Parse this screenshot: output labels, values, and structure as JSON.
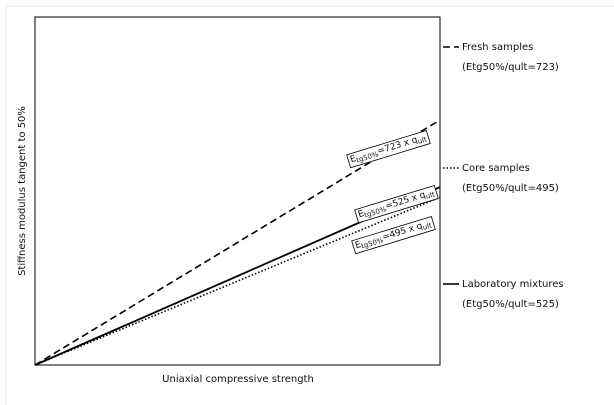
{
  "chart_data": {
    "type": "line",
    "x_label": "Uniaxial compressive strength",
    "y_label": "Stiffness modulus tangent to 50%",
    "xlim": [
      0,
      1
    ],
    "ylim": [
      0,
      1027
    ],
    "series": [
      {
        "name": "Fresh samples",
        "description": "(Etg50%/qult=723)",
        "color": "#000000",
        "dash": "dashed",
        "x": [
          0,
          1
        ],
        "values": [
          0,
          723
        ],
        "annotation": {
          "text": "E",
          "sub": "tg50%",
          "text2": "=723 x q",
          "sub2": "ult"
        }
      },
      {
        "name": "Core samples",
        "description": "(Etg50%/qult=495)",
        "color": "#000000",
        "dash": "dotted",
        "x": [
          0,
          1
        ],
        "values": [
          0,
          495
        ],
        "annotation": {
          "text": "E",
          "sub": "tg50%",
          "text2": "=495 x q",
          "sub2": "ult"
        }
      },
      {
        "name": "Laboratory mixtures",
        "description": "(Etg50%/qult=525)",
        "color": "#000000",
        "dash": "solid",
        "x": [
          0,
          1
        ],
        "values": [
          0,
          525
        ],
        "annotation": {
          "text": "E",
          "sub": "tg50%",
          "text2": "=525 x q",
          "sub2": "ult"
        }
      }
    ]
  }
}
